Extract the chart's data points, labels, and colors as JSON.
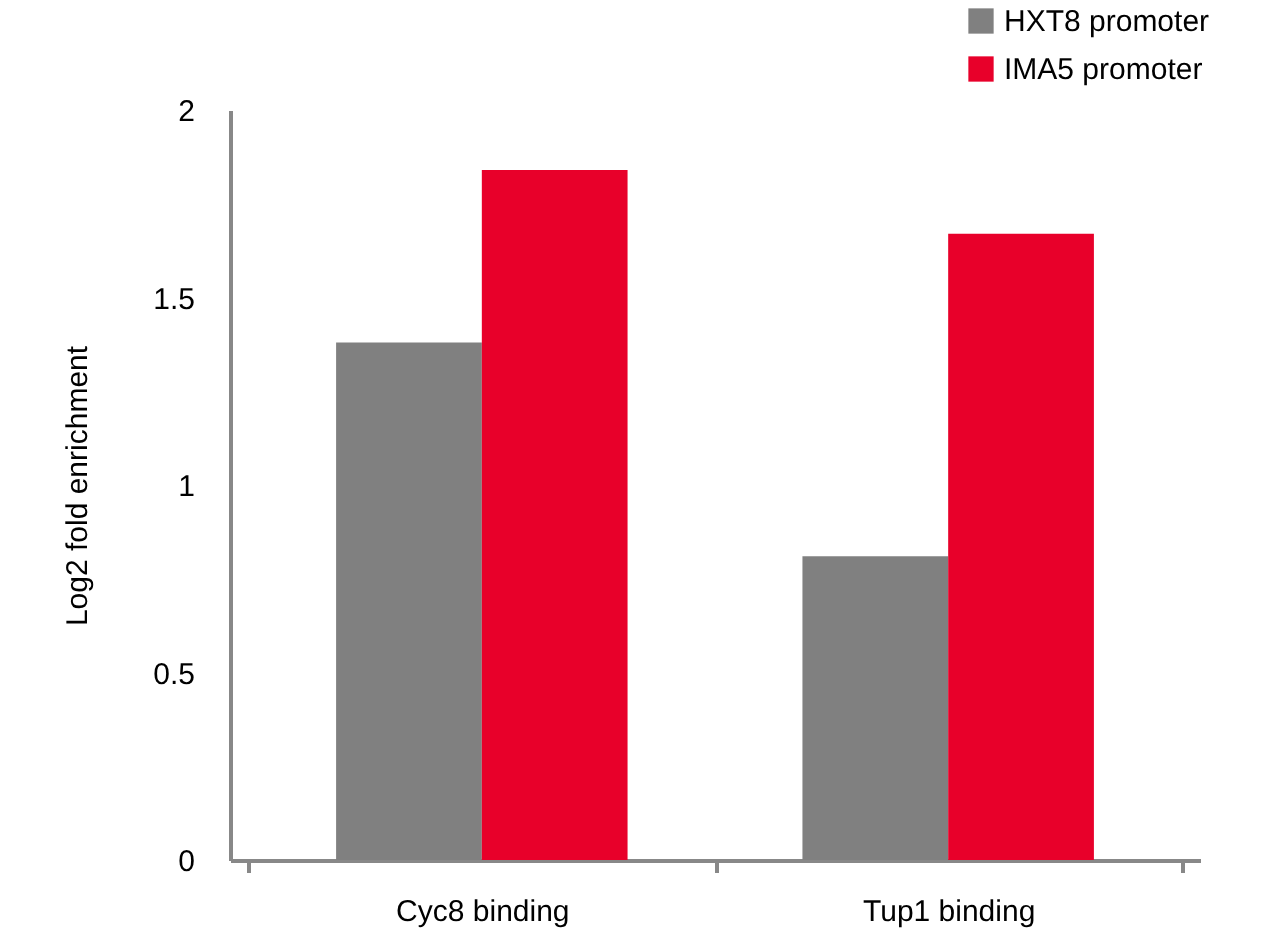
{
  "chart_data": {
    "type": "bar",
    "ylabel": "Log2 fold enrichment",
    "categories": [
      "Cyc8 binding",
      "Tup1 binding"
    ],
    "series": [
      {
        "name": "HXT8 promoter",
        "color": "#808080",
        "values": [
          1.38,
          0.81
        ]
      },
      {
        "name": "IMA5 promoter",
        "color": "#e8002a",
        "values": [
          1.84,
          1.67
        ]
      }
    ],
    "ylim": [
      0,
      2
    ],
    "yticks": [
      0,
      0.5,
      1,
      1.5,
      2
    ],
    "grid": false,
    "legend": "top right"
  }
}
